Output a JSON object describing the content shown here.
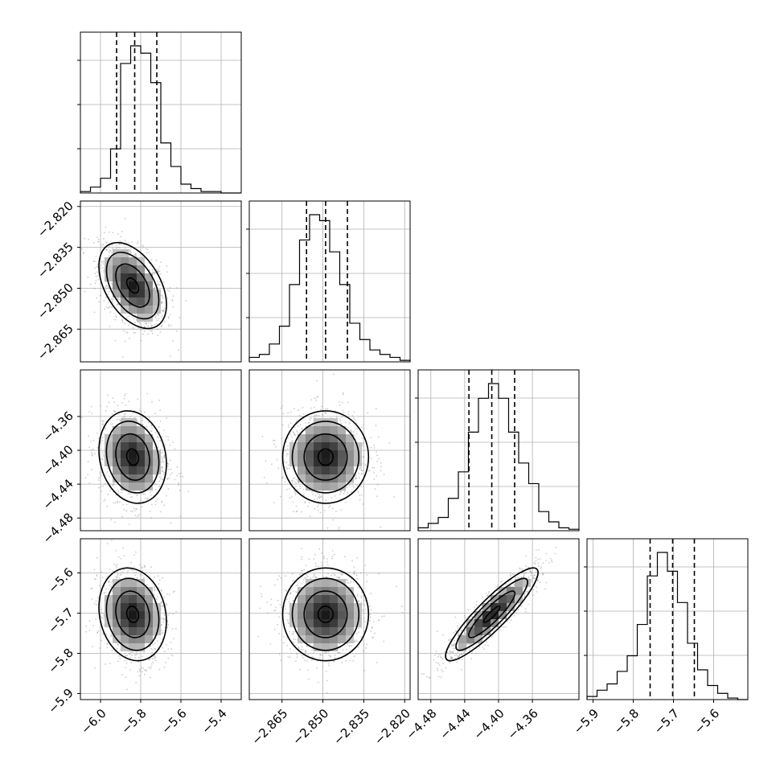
{
  "chart_data": {
    "type": "corner",
    "parameters": [
      {
        "range": [
          -6.1,
          -5.3
        ],
        "ticks": [
          -6.0,
          -5.8,
          -5.6,
          -5.4
        ],
        "tick_labels": [
          "−6.0",
          "−5.8",
          "−5.6",
          "−5.4"
        ],
        "quantiles": [
          -5.92,
          -5.83,
          -5.72
        ],
        "hist": [
          1,
          4,
          10,
          30,
          88,
          100,
          95,
          75,
          34,
          18,
          6,
          3,
          1,
          1,
          0,
          0
        ],
        "center": -5.84,
        "sd": 0.08
      },
      {
        "range": [
          -2.877,
          -2.818
        ],
        "ticks": [
          -2.865,
          -2.85,
          -2.835,
          -2.82
        ],
        "tick_labels": [
          "−2.865",
          "−2.850",
          "−2.835",
          "−2.820"
        ],
        "quantiles": [
          -2.856,
          -2.849,
          -2.841
        ],
        "hist": [
          3,
          5,
          12,
          24,
          52,
          82,
          99,
          95,
          74,
          52,
          26,
          15,
          8,
          5,
          3,
          1
        ],
        "center": -2.849,
        "sd": 0.0075
      },
      {
        "range": [
          -4.495,
          -4.305
        ],
        "ticks": [
          -4.48,
          -4.44,
          -4.4,
          -4.36
        ],
        "tick_labels": [
          "−4.48",
          "−4.44",
          "−4.40",
          "−4.36"
        ],
        "quantiles": [
          -4.435,
          -4.408,
          -4.381
        ],
        "hist": [
          2,
          5,
          9,
          22,
          40,
          67,
          90,
          100,
          90,
          67,
          46,
          32,
          13,
          6,
          2,
          1
        ],
        "center": -4.408,
        "sd": 0.026
      },
      {
        "range": [
          -5.915,
          -5.515
        ],
        "ticks": [
          -5.9,
          -5.8,
          -5.7,
          -5.6
        ],
        "tick_labels": [
          "−5.9",
          "−5.8",
          "−5.7",
          "−5.6"
        ],
        "quantiles": [
          -5.758,
          -5.702,
          -5.648
        ],
        "hist": [
          2,
          6,
          10,
          18,
          28,
          48,
          79,
          94,
          82,
          62,
          36,
          19,
          9,
          4,
          1,
          0
        ],
        "center": -5.703,
        "sd": 0.055
      }
    ],
    "y_ticks": {
      "1": {
        "ticks": [
          -2.82,
          -2.835,
          -2.85,
          -2.865
        ],
        "tick_labels": [
          "−2.820",
          "−2.835",
          "−2.850",
          "−2.865"
        ]
      },
      "2": {
        "ticks": [
          -4.36,
          -4.4,
          -4.44,
          -4.48
        ],
        "tick_labels": [
          "−4.36",
          "−4.40",
          "−4.44",
          "−4.48"
        ]
      },
      "3": {
        "ticks": [
          -5.6,
          -5.7,
          -5.8,
          -5.9
        ],
        "tick_labels": [
          "−5.6",
          "−5.7",
          "−5.8",
          "−5.9"
        ]
      }
    },
    "correlations": {
      "1-0": -0.45,
      "2-0": -0.15,
      "2-1": 0.0,
      "3-0": -0.15,
      "3-1": 0.0,
      "3-2": 0.9
    },
    "grid": true,
    "colors": {
      "line": "#000000",
      "grid": "#b0b0b0",
      "points": "#9a9a9a"
    }
  }
}
